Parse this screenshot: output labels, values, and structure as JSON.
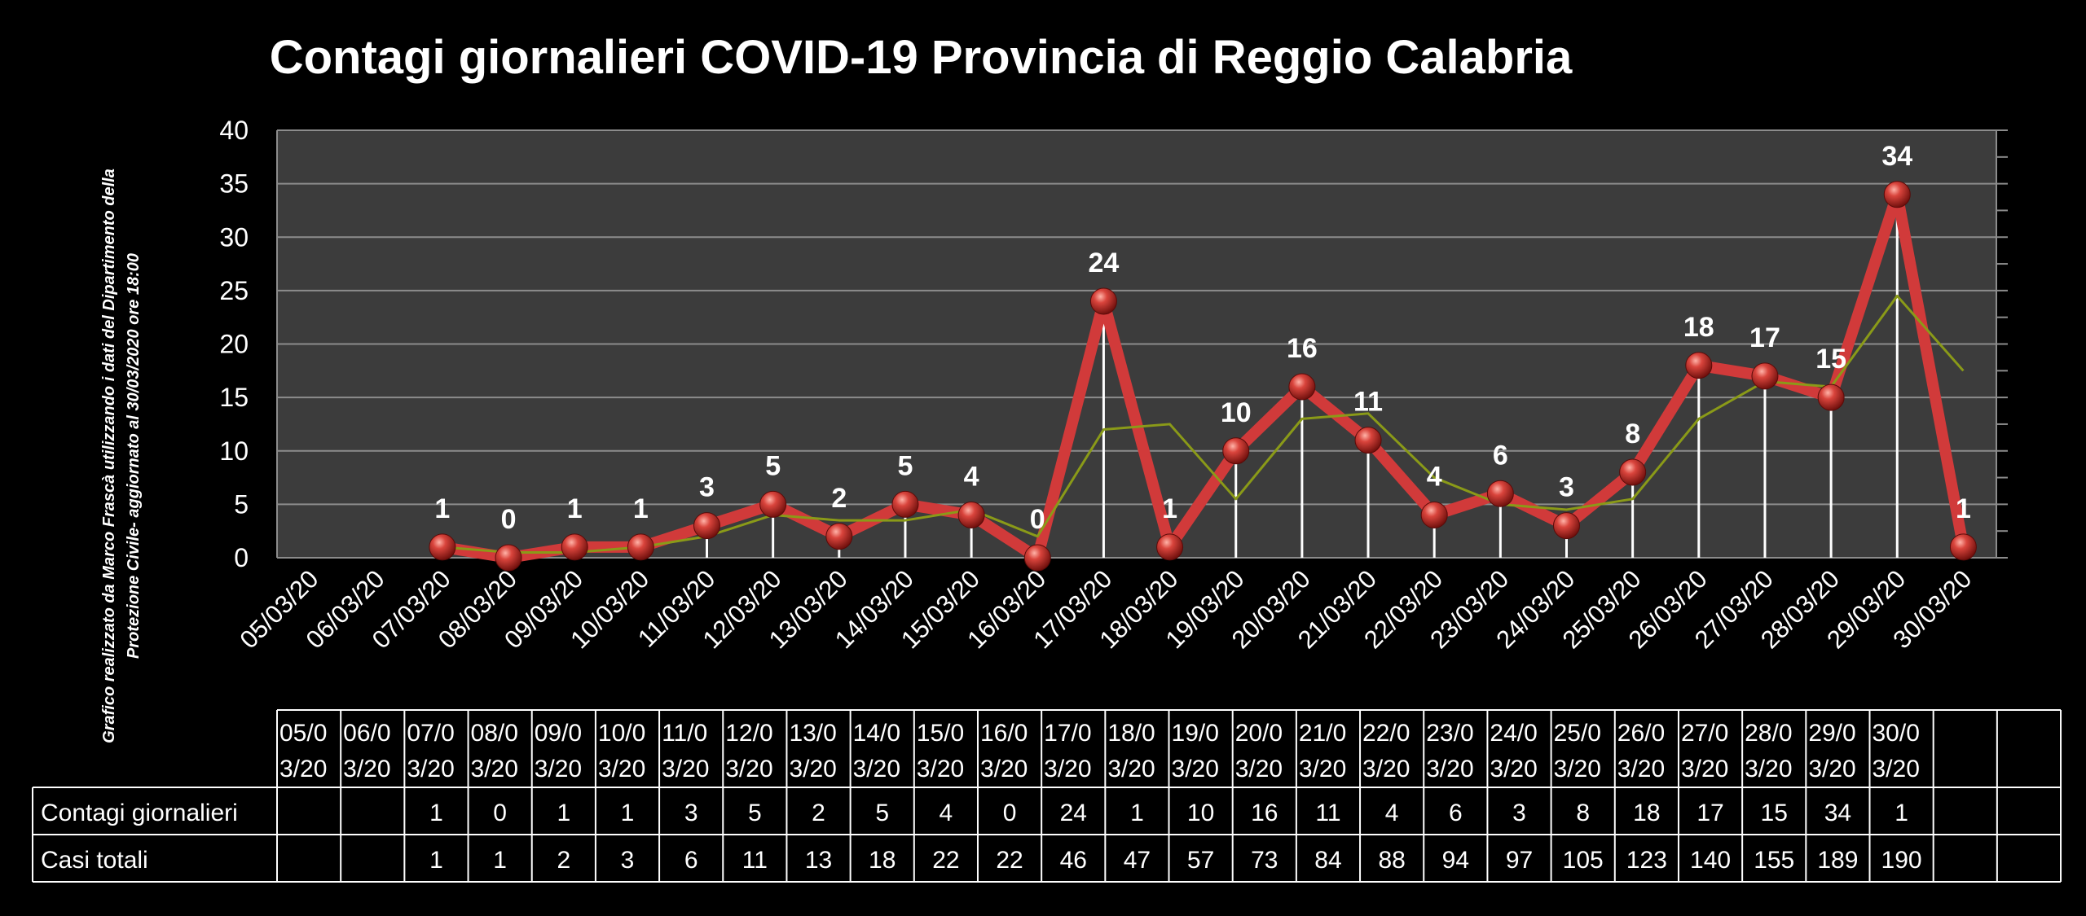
{
  "chart_data": {
    "type": "line",
    "title": "Contagi  giornalieri COVID-19 Provincia di Reggio Calabria",
    "side_note": [
      "Grafico  realizzato da Marco Frascà  utilizzando i dati del Dipartimento  della",
      "Protezione Civile- aggiornato al 30/03/2020 ore 18:00"
    ],
    "ylim": [
      0,
      40
    ],
    "yticks": [
      0,
      5,
      10,
      15,
      20,
      25,
      30,
      35,
      40
    ],
    "grid": true,
    "categories": [
      "05/03/20",
      "06/03/20",
      "07/03/20",
      "08/03/20",
      "09/03/20",
      "10/03/20",
      "11/03/20",
      "12/03/20",
      "13/03/20",
      "14/03/20",
      "15/03/20",
      "16/03/20",
      "17/03/20",
      "18/03/20",
      "19/03/20",
      "20/03/20",
      "21/03/20",
      "22/03/20",
      "23/03/20",
      "24/03/20",
      "25/03/20",
      "26/03/20",
      "27/03/20",
      "28/03/20",
      "29/03/20",
      "30/03/20"
    ],
    "series": [
      {
        "values": [
          null,
          null,
          1,
          0,
          1,
          1,
          3,
          5,
          2,
          5,
          4,
          0,
          24,
          1,
          10,
          16,
          11,
          4,
          6,
          3,
          8,
          18,
          17,
          15,
          34,
          1
        ],
        "color": "#d13a3a"
      },
      {
        "values": [
          null,
          null,
          1,
          0.5,
          0.5,
          1,
          2,
          4,
          3.5,
          3.5,
          4.5,
          2,
          12,
          12.5,
          5.5,
          13,
          13.5,
          7.5,
          5,
          4.5,
          5.5,
          13,
          16.5,
          16,
          24.5,
          17.5
        ],
        "color": "#8a9a18"
      }
    ],
    "table": {
      "header": [
        "05/0\n3/20",
        "06/0\n3/20",
        "07/0\n3/20",
        "08/0\n3/20",
        "09/0\n3/20",
        "10/0\n3/20",
        "11/0\n3/20",
        "12/0\n3/20",
        "13/0\n3/20",
        "14/0\n3/20",
        "15/0\n3/20",
        "16/0\n3/20",
        "17/0\n3/20",
        "18/0\n3/20",
        "19/0\n3/20",
        "20/0\n3/20",
        "21/0\n3/20",
        "22/0\n3/20",
        "23/0\n3/20",
        "24/0\n3/20",
        "25/0\n3/20",
        "26/0\n3/20",
        "27/0\n3/20",
        "28/0\n3/20",
        "29/0\n3/20",
        "30/0\n3/20",
        "",
        ""
      ],
      "rows": [
        {
          "label": "Contagi giornalieri",
          "values": [
            "",
            "",
            "1",
            "0",
            "1",
            "1",
            "3",
            "5",
            "2",
            "5",
            "4",
            "0",
            "24",
            "1",
            "10",
            "16",
            "11",
            "4",
            "6",
            "3",
            "8",
            "18",
            "17",
            "15",
            "34",
            "1",
            "",
            ""
          ]
        },
        {
          "label": "Casi totali",
          "values": [
            "",
            "",
            "1",
            "1",
            "2",
            "3",
            "6",
            "11",
            "13",
            "18",
            "22",
            "22",
            "46",
            "47",
            "57",
            "73",
            "84",
            "88",
            "94",
            "97",
            "105",
            "123",
            "140",
            "155",
            "189",
            "190",
            "",
            ""
          ]
        }
      ]
    }
  }
}
